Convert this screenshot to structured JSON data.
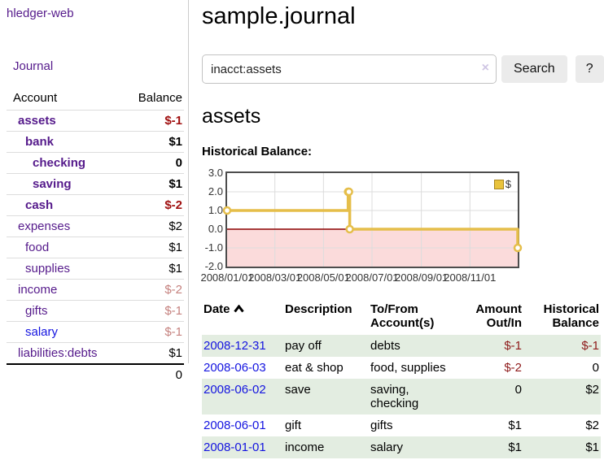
{
  "app": {
    "brand": "hledger-web",
    "nav_journal": "Journal"
  },
  "sidebar": {
    "header": {
      "account": "Account",
      "balance": "Balance"
    },
    "accounts": [
      {
        "name": "assets",
        "balance": "$-1"
      },
      {
        "name": "bank",
        "balance": "$1"
      },
      {
        "name": "checking",
        "balance": "0"
      },
      {
        "name": "saving",
        "balance": "$1"
      },
      {
        "name": "cash",
        "balance": "$-2"
      },
      {
        "name": "expenses",
        "balance": "$2"
      },
      {
        "name": "food",
        "balance": "$1"
      },
      {
        "name": "supplies",
        "balance": "$1"
      },
      {
        "name": "income",
        "balance": "$-2"
      },
      {
        "name": "gifts",
        "balance": "$-1"
      },
      {
        "name": "salary",
        "balance": "$-1"
      },
      {
        "name": "liabilities:debts",
        "balance": "$1"
      }
    ],
    "total": "0"
  },
  "main": {
    "title": "sample.journal",
    "search": {
      "value": "inacct:assets",
      "clear_label": "×",
      "button_label": "Search",
      "help_label": "?"
    },
    "account_heading": "assets",
    "chart_label": "Historical Balance:"
  },
  "chart_data": {
    "type": "line",
    "title": "Historical Balance:",
    "series": [
      {
        "name": "$",
        "color": "#E5BE4A",
        "step": true,
        "points": [
          [
            "2008-01-01",
            1
          ],
          [
            "2008-06-01",
            2
          ],
          [
            "2008-06-02",
            2
          ],
          [
            "2008-06-03",
            0
          ],
          [
            "2008-12-31",
            -1
          ]
        ]
      }
    ],
    "x_range": [
      "2008-01-01",
      "2008-12-31"
    ],
    "y_range": [
      -2,
      3
    ],
    "x_ticks": [
      "2008/01/01",
      "2008/03/01",
      "2008/05/01",
      "2008/07/01",
      "2008/09/01",
      "2008/11/01"
    ],
    "y_ticks": [
      "3.0",
      "2.0",
      "1.0",
      "0.0",
      "-1.0",
      "-2.0"
    ],
    "grid": true,
    "legend_position": "top-right",
    "negative_fill": "#FBDBDB",
    "zero_line_color": "#8B0000"
  },
  "transactions": {
    "headers": {
      "date": "Date",
      "description": "Description",
      "accounts": "To/From Account(s)",
      "amount": "Amount Out/In",
      "balance": "Historical Balance"
    },
    "rows": [
      {
        "date": "2008-12-31",
        "description": "pay off",
        "accounts": "debts",
        "amount": "$-1",
        "balance": "$-1"
      },
      {
        "date": "2008-06-03",
        "description": "eat & shop",
        "accounts": "food, supplies",
        "amount": "$-2",
        "balance": "0"
      },
      {
        "date": "2008-06-02",
        "description": "save",
        "accounts": "saving, checking",
        "amount": "0",
        "balance": "$2"
      },
      {
        "date": "2008-06-01",
        "description": "gift",
        "accounts": "gifts",
        "amount": "$1",
        "balance": "$2"
      },
      {
        "date": "2008-01-01",
        "description": "income",
        "accounts": "salary",
        "amount": "$1",
        "balance": "$1"
      }
    ]
  }
}
